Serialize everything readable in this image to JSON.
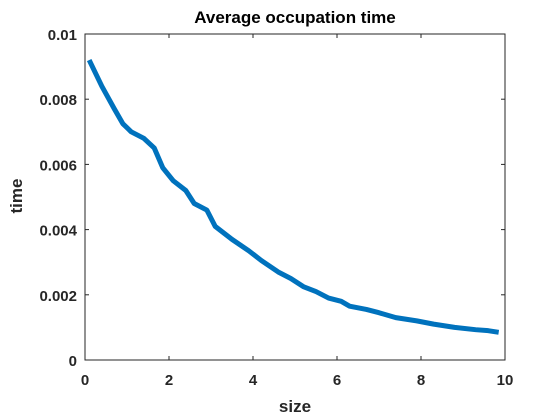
{
  "chart_data": {
    "type": "line",
    "title": "Average occupation time",
    "xlabel": "size",
    "ylabel": "time",
    "xlim": [
      0,
      10
    ],
    "ylim": [
      0,
      0.01
    ],
    "xticks": [
      0,
      2,
      4,
      6,
      8,
      10
    ],
    "xtick_labels": [
      "0",
      "2",
      "4",
      "6",
      "8",
      "10"
    ],
    "yticks": [
      0,
      0.002,
      0.004,
      0.006,
      0.008,
      0.01
    ],
    "ytick_labels": [
      "0",
      "0.002",
      "0.004",
      "0.006",
      "0.008",
      "0.01"
    ],
    "grid": false,
    "series": [
      {
        "color": "#0072BD",
        "x": [
          0.1,
          0.4,
          0.7,
          0.9,
          1.1,
          1.4,
          1.65,
          1.85,
          2.1,
          2.4,
          2.6,
          2.9,
          3.1,
          3.5,
          3.9,
          4.2,
          4.6,
          4.9,
          5.2,
          5.5,
          5.8,
          6.1,
          6.3,
          6.7,
          7.0,
          7.4,
          7.9,
          8.3,
          8.8,
          9.3,
          9.6,
          9.85
        ],
        "y": [
          0.0092,
          0.0084,
          0.0077,
          0.00725,
          0.007,
          0.0068,
          0.0065,
          0.0059,
          0.0055,
          0.0052,
          0.0048,
          0.0046,
          0.0041,
          0.0037,
          0.00335,
          0.00305,
          0.0027,
          0.0025,
          0.00225,
          0.0021,
          0.0019,
          0.0018,
          0.00165,
          0.00155,
          0.00145,
          0.0013,
          0.0012,
          0.0011,
          0.001,
          0.00093,
          0.0009,
          0.00085
        ]
      }
    ]
  }
}
